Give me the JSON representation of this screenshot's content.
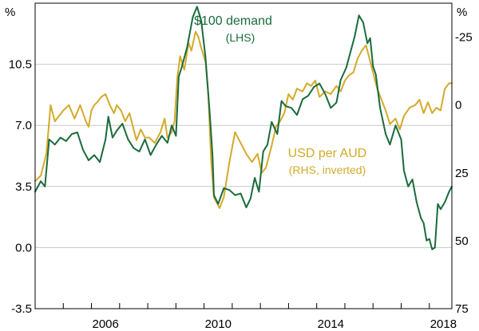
{
  "chart_data": {
    "type": "line",
    "left_unit": "%",
    "right_unit": "%",
    "x_ticks": [
      "2006",
      "2010",
      "2014",
      "2018"
    ],
    "x_tick_years": [
      2006,
      2010,
      2014,
      2018
    ],
    "xlim": [
      2004,
      2018.8
    ],
    "left_axis": {
      "ylim": [
        -3.5,
        14
      ],
      "ticks": [
        -3.5,
        0.0,
        3.5,
        7.0,
        10.5
      ],
      "tick_labels": [
        "-3.5",
        "0.0",
        "3.5",
        "7.0",
        "10.5"
      ]
    },
    "right_axis": {
      "ylim": [
        75,
        -37.5
      ],
      "inverted": true,
      "ticks": [
        75,
        50,
        25,
        0,
        -25
      ],
      "tick_labels": [
        "75",
        "50",
        "25",
        "0",
        "-25"
      ]
    },
    "grid": true,
    "series": [
      {
        "name": "$100 demand",
        "axis": "left",
        "color": "#1a6b3c",
        "label_line1": "$100 demand",
        "label_line2": "(LHS)",
        "points": [
          [
            2004.0,
            3.2
          ],
          [
            2004.2,
            3.8
          ],
          [
            2004.35,
            3.5
          ],
          [
            2004.5,
            6.2
          ],
          [
            2004.7,
            5.9
          ],
          [
            2004.9,
            6.3
          ],
          [
            2005.1,
            6.1
          ],
          [
            2005.3,
            6.5
          ],
          [
            2005.5,
            6.6
          ],
          [
            2005.7,
            5.6
          ],
          [
            2005.9,
            5.0
          ],
          [
            2006.1,
            5.3
          ],
          [
            2006.3,
            4.9
          ],
          [
            2006.5,
            6.2
          ],
          [
            2006.6,
            7.5
          ],
          [
            2006.75,
            6.3
          ],
          [
            2006.9,
            6.7
          ],
          [
            2007.1,
            7.1
          ],
          [
            2007.3,
            6.2
          ],
          [
            2007.5,
            5.7
          ],
          [
            2007.7,
            5.5
          ],
          [
            2007.9,
            6.2
          ],
          [
            2008.1,
            5.3
          ],
          [
            2008.3,
            5.9
          ],
          [
            2008.5,
            6.4
          ],
          [
            2008.7,
            6.0
          ],
          [
            2008.85,
            7.0
          ],
          [
            2009.0,
            6.4
          ],
          [
            2009.1,
            9.8
          ],
          [
            2009.2,
            10.3
          ],
          [
            2009.4,
            11.5
          ],
          [
            2009.6,
            13.2
          ],
          [
            2009.75,
            13.8
          ],
          [
            2009.9,
            13.0
          ],
          [
            2010.05,
            10.9
          ],
          [
            2010.2,
            7.7
          ],
          [
            2010.3,
            5.3
          ],
          [
            2010.35,
            3.0
          ],
          [
            2010.5,
            2.5
          ],
          [
            2010.7,
            3.4
          ],
          [
            2010.9,
            3.3
          ],
          [
            2011.1,
            3.0
          ],
          [
            2011.3,
            3.1
          ],
          [
            2011.5,
            2.3
          ],
          [
            2011.65,
            2.8
          ],
          [
            2011.8,
            4.0
          ],
          [
            2011.95,
            3.2
          ],
          [
            2012.1,
            5.5
          ],
          [
            2012.25,
            5.9
          ],
          [
            2012.4,
            7.2
          ],
          [
            2012.6,
            6.5
          ],
          [
            2012.75,
            8.4
          ],
          [
            2012.9,
            8.1
          ],
          [
            2013.1,
            8.0
          ],
          [
            2013.3,
            7.6
          ],
          [
            2013.5,
            8.5
          ],
          [
            2013.7,
            8.7
          ],
          [
            2013.9,
            9.2
          ],
          [
            2014.1,
            9.4
          ],
          [
            2014.3,
            8.8
          ],
          [
            2014.5,
            8.0
          ],
          [
            2014.7,
            8.3
          ],
          [
            2014.85,
            9.6
          ],
          [
            2015.05,
            10.3
          ],
          [
            2015.2,
            11.2
          ],
          [
            2015.35,
            12.1
          ],
          [
            2015.5,
            13.3
          ],
          [
            2015.65,
            12.9
          ],
          [
            2015.8,
            11.7
          ],
          [
            2015.9,
            12.0
          ],
          [
            2016.0,
            10.4
          ],
          [
            2016.1,
            9.9
          ],
          [
            2016.25,
            8.0
          ],
          [
            2016.45,
            6.5
          ],
          [
            2016.6,
            5.9
          ],
          [
            2016.8,
            7.0
          ],
          [
            2017.0,
            6.2
          ],
          [
            2017.1,
            4.4
          ],
          [
            2017.25,
            3.5
          ],
          [
            2017.4,
            3.9
          ],
          [
            2017.55,
            2.6
          ],
          [
            2017.7,
            1.7
          ],
          [
            2017.8,
            1.4
          ],
          [
            2017.9,
            0.4
          ],
          [
            2018.0,
            0.5
          ],
          [
            2018.1,
            -0.1
          ],
          [
            2018.2,
            0.0
          ],
          [
            2018.3,
            2.5
          ],
          [
            2018.4,
            2.2
          ],
          [
            2018.55,
            2.6
          ],
          [
            2018.7,
            3.2
          ],
          [
            2018.8,
            3.5
          ]
        ]
      },
      {
        "name": "USD per AUD",
        "axis": "right",
        "color": "#d4aa2a",
        "label_line1": "USD per AUD",
        "label_line2": "(RHS, inverted)",
        "points": [
          [
            2004.0,
            28
          ],
          [
            2004.2,
            26
          ],
          [
            2004.4,
            18
          ],
          [
            2004.55,
            0
          ],
          [
            2004.7,
            6
          ],
          [
            2004.85,
            4
          ],
          [
            2005.0,
            2
          ],
          [
            2005.2,
            0
          ],
          [
            2005.4,
            5
          ],
          [
            2005.6,
            0
          ],
          [
            2005.8,
            6
          ],
          [
            2005.9,
            8
          ],
          [
            2006.0,
            2
          ],
          [
            2006.1,
            0
          ],
          [
            2006.2,
            -1
          ],
          [
            2006.35,
            -3
          ],
          [
            2006.5,
            -4
          ],
          [
            2006.65,
            0
          ],
          [
            2006.8,
            3
          ],
          [
            2006.9,
            0
          ],
          [
            2007.05,
            2
          ],
          [
            2007.2,
            6
          ],
          [
            2007.35,
            3
          ],
          [
            2007.5,
            9
          ],
          [
            2007.6,
            13
          ],
          [
            2007.75,
            9
          ],
          [
            2007.9,
            12
          ],
          [
            2008.05,
            12
          ],
          [
            2008.25,
            14
          ],
          [
            2008.45,
            10
          ],
          [
            2008.6,
            5
          ],
          [
            2008.7,
            12
          ],
          [
            2008.85,
            10
          ],
          [
            2008.95,
            6
          ],
          [
            2009.05,
            -10
          ],
          [
            2009.15,
            -18
          ],
          [
            2009.3,
            -13
          ],
          [
            2009.45,
            -23
          ],
          [
            2009.55,
            -20
          ],
          [
            2009.7,
            -27
          ],
          [
            2009.8,
            -25
          ],
          [
            2009.9,
            -21
          ],
          [
            2010.05,
            -16
          ],
          [
            2010.15,
            -4
          ],
          [
            2010.25,
            20
          ],
          [
            2010.35,
            34
          ],
          [
            2010.45,
            36
          ],
          [
            2010.55,
            38
          ],
          [
            2010.7,
            34
          ],
          [
            2010.9,
            21
          ],
          [
            2011.1,
            10
          ],
          [
            2011.3,
            14
          ],
          [
            2011.5,
            18
          ],
          [
            2011.7,
            21
          ],
          [
            2011.9,
            18
          ],
          [
            2012.05,
            25
          ],
          [
            2012.2,
            23
          ],
          [
            2012.4,
            15
          ],
          [
            2012.55,
            8
          ],
          [
            2012.7,
            6
          ],
          [
            2012.85,
            3
          ],
          [
            2013.0,
            -4
          ],
          [
            2013.15,
            -2
          ],
          [
            2013.3,
            -6
          ],
          [
            2013.5,
            -5
          ],
          [
            2013.65,
            -8
          ],
          [
            2013.8,
            -7
          ],
          [
            2013.95,
            -9
          ],
          [
            2014.1,
            -3
          ],
          [
            2014.3,
            -5
          ],
          [
            2014.5,
            -4
          ],
          [
            2014.7,
            -7
          ],
          [
            2014.85,
            -5
          ],
          [
            2015.0,
            -9
          ],
          [
            2015.15,
            -11
          ],
          [
            2015.3,
            -12
          ],
          [
            2015.45,
            -17
          ],
          [
            2015.6,
            -20
          ],
          [
            2015.75,
            -22
          ],
          [
            2015.85,
            -18
          ],
          [
            2016.0,
            -12
          ],
          [
            2016.15,
            -6
          ],
          [
            2016.3,
            -2
          ],
          [
            2016.45,
            2
          ],
          [
            2016.6,
            7
          ],
          [
            2016.8,
            5
          ],
          [
            2016.95,
            9
          ],
          [
            2017.1,
            4
          ],
          [
            2017.3,
            1
          ],
          [
            2017.5,
            0
          ],
          [
            2017.65,
            -2
          ],
          [
            2017.8,
            3
          ],
          [
            2017.95,
            -1
          ],
          [
            2018.1,
            3
          ],
          [
            2018.25,
            1
          ],
          [
            2018.4,
            2
          ],
          [
            2018.55,
            -6
          ],
          [
            2018.7,
            -8
          ],
          [
            2018.8,
            -8
          ]
        ]
      }
    ]
  }
}
